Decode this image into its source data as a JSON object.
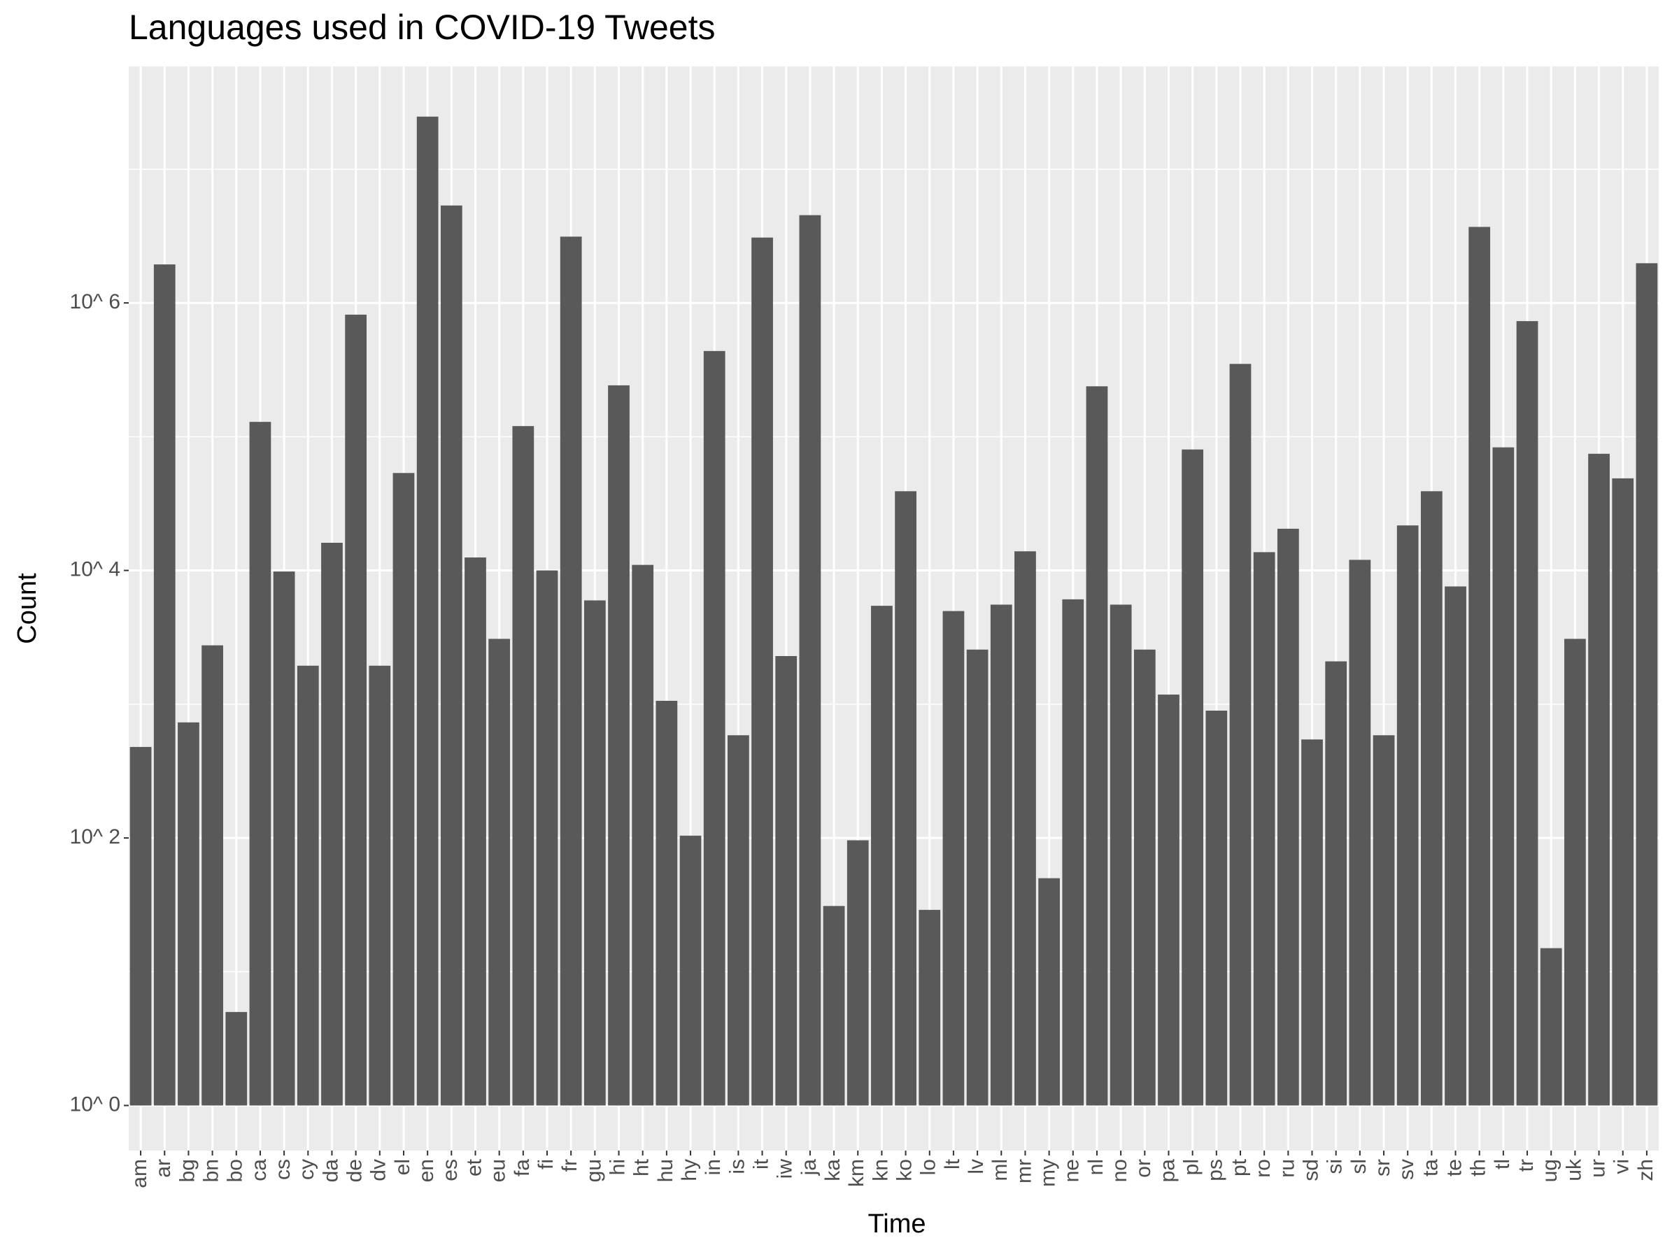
{
  "chart_data": {
    "type": "bar",
    "title": "Languages used in COVID-19 Tweets",
    "xlabel": "Time",
    "ylabel": "Count",
    "categories": [
      "am",
      "ar",
      "bg",
      "bn",
      "bo",
      "ca",
      "cs",
      "cy",
      "da",
      "de",
      "dv",
      "el",
      "en",
      "es",
      "et",
      "eu",
      "fa",
      "fi",
      "fr",
      "gu",
      "hi",
      "ht",
      "hu",
      "hy",
      "in",
      "is",
      "it",
      "iw",
      "ja",
      "ka",
      "km",
      "kn",
      "ko",
      "lo",
      "lt",
      "lv",
      "ml",
      "mr",
      "my",
      "ne",
      "nl",
      "no",
      "or",
      "pa",
      "pl",
      "ps",
      "pt",
      "ro",
      "ru",
      "sd",
      "si",
      "sl",
      "sr",
      "sv",
      "ta",
      "te",
      "th",
      "tl",
      "tr",
      "ug",
      "uk",
      "ur",
      "vi",
      "zh"
    ],
    "values": [
      479,
      1940000,
      731,
      2754,
      5,
      129000,
      9820,
      1940,
      16100,
      817000,
      1940,
      53500,
      24700000,
      5350000,
      12500,
      3080,
      120000,
      10000,
      3130000,
      5970,
      242000,
      11000,
      1060,
      104,
      437000,
      586,
      3080000,
      2290,
      4530000,
      31,
      96,
      5440,
      39100,
      29,
      4970,
      2560,
      5550,
      13900,
      50,
      6080,
      238000,
      5550,
      2560,
      1180,
      80200,
      895,
      350000,
      13700,
      20500,
      545,
      2090,
      12000,
      586,
      21700,
      39100,
      7590,
      3700000,
      83200,
      731000,
      15,
      3080,
      74500,
      48800,
      1980000
    ],
    "color": "#595959",
    "log_scale": true,
    "ylim": [
      0.46,
      58600000
    ],
    "yticks": [
      {
        "value": 1,
        "label": "10^ 0"
      },
      {
        "value": 100,
        "label": "10^ 2"
      },
      {
        "value": 10000,
        "label": "10^ 4"
      },
      {
        "value": 1000000,
        "label": "10^ 6"
      }
    ],
    "y_minor_grid": [
      10,
      1000,
      100000,
      10000000
    ],
    "grid": true
  }
}
